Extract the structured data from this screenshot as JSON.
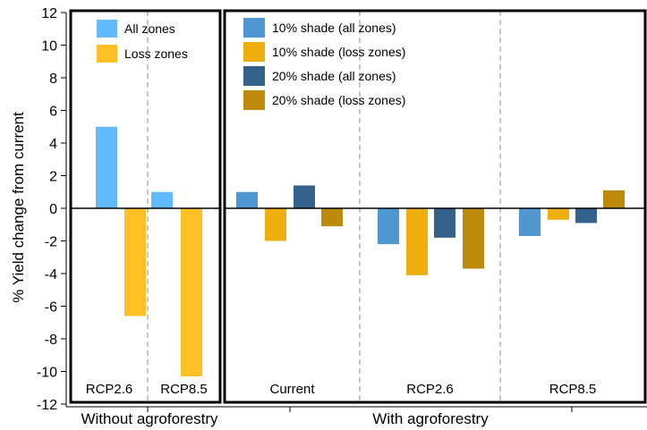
{
  "chart_data": {
    "type": "bar",
    "ylabel": "% Yield change from current",
    "ylim": [
      -12,
      12
    ],
    "yticks": [
      -12,
      -10,
      -8,
      -6,
      -4,
      -2,
      0,
      2,
      4,
      6,
      8,
      10,
      12
    ],
    "grid": false,
    "panels": [
      {
        "group_label": "Without agroforestry",
        "legend_position": "top-left",
        "categories": [
          "RCP2.6",
          "RCP8.5"
        ],
        "series": [
          {
            "name": "All zones",
            "color": "#63bbfb",
            "values": [
              5.0,
              1.0
            ]
          },
          {
            "name": "Loss zones",
            "color": "#fec025",
            "values": [
              -6.6,
              -10.3
            ]
          }
        ]
      },
      {
        "group_label": "With agroforestry",
        "legend_position": "top-left",
        "categories": [
          "Current",
          "RCP2.6",
          "RCP8.5"
        ],
        "series": [
          {
            "name": "10% shade (all zones)",
            "color": "#5096d0",
            "values": [
              1.0,
              -2.2,
              -1.7
            ]
          },
          {
            "name": "10% shade (loss zones)",
            "color": "#eeaf0e",
            "values": [
              -2.0,
              -4.1,
              -0.7
            ]
          },
          {
            "name": "20% shade (all zones)",
            "color": "#34628a",
            "values": [
              1.4,
              -1.8,
              -0.9
            ]
          },
          {
            "name": "20% shade (loss zones)",
            "color": "#bd8a0c",
            "values": [
              -1.1,
              -3.7,
              1.1
            ]
          }
        ]
      }
    ]
  }
}
